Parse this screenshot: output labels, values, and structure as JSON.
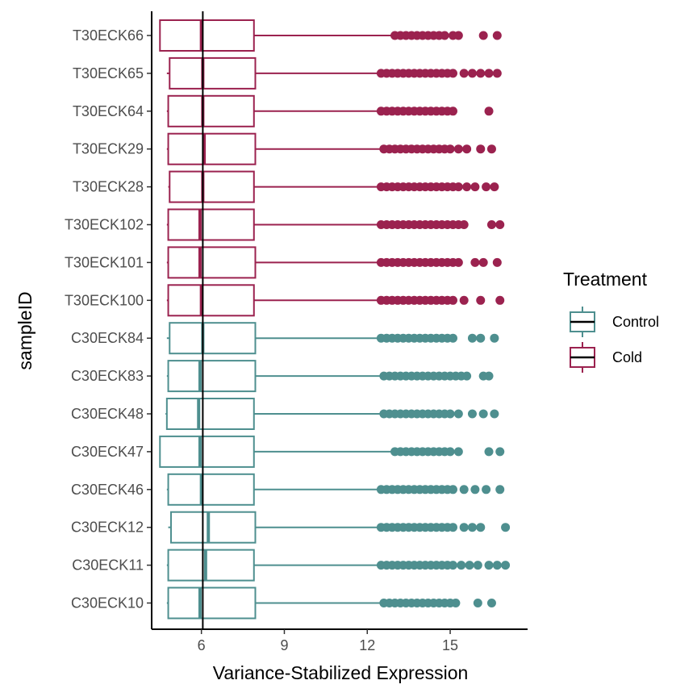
{
  "chart_data": {
    "type": "boxplot",
    "orientation": "horizontal",
    "title": "",
    "xlabel": "Variance-Stabilized Expression",
    "ylabel": "sampleID",
    "xlim": [
      4.2,
      17.8
    ],
    "xticks": [
      6,
      9,
      12,
      15
    ],
    "xtick_labels": [
      "6",
      "9",
      "12",
      "15"
    ],
    "grid": false,
    "reference_line": {
      "x": 6.05,
      "color": "#000000"
    },
    "legend": {
      "title": "Treatment",
      "placement": "right",
      "items": [
        {
          "label": "Control",
          "color": "#4e8f8f"
        },
        {
          "label": "Cold",
          "color": "#9b224f"
        }
      ]
    },
    "categories": [
      "T30ECK66",
      "T30ECK65",
      "T30ECK64",
      "T30ECK29",
      "T30ECK28",
      "T30ECK102",
      "T30ECK101",
      "T30ECK100",
      "C30ECK84",
      "C30ECK83",
      "C30ECK48",
      "C30ECK47",
      "C30ECK46",
      "C30ECK12",
      "C30ECK11",
      "C30ECK10"
    ],
    "boxes": [
      {
        "sample": "T30ECK66",
        "treatment": "Cold",
        "whisker_low": 4.5,
        "q1": 4.5,
        "median": 6.0,
        "q3": 7.9,
        "whisker_high": 13.0,
        "outliers": [
          13.0,
          13.2,
          13.4,
          13.6,
          13.8,
          14.0,
          14.2,
          14.4,
          14.6,
          14.8,
          15.1,
          15.3,
          16.2,
          16.7
        ]
      },
      {
        "sample": "T30ECK65",
        "treatment": "Cold",
        "whisker_low": 4.75,
        "q1": 4.85,
        "median": 6.05,
        "q3": 7.95,
        "whisker_high": 12.5,
        "outliers": [
          12.5,
          12.7,
          12.9,
          13.1,
          13.3,
          13.5,
          13.7,
          13.9,
          14.1,
          14.3,
          14.5,
          14.7,
          14.9,
          15.1,
          15.5,
          15.8,
          16.1,
          16.4,
          16.7
        ]
      },
      {
        "sample": "T30ECK64",
        "treatment": "Cold",
        "whisker_low": 4.75,
        "q1": 4.8,
        "median": 6.05,
        "q3": 7.9,
        "whisker_high": 12.5,
        "outliers": [
          12.5,
          12.7,
          12.9,
          13.1,
          13.3,
          13.5,
          13.7,
          13.9,
          14.1,
          14.3,
          14.5,
          14.7,
          14.9,
          15.1,
          16.4
        ]
      },
      {
        "sample": "T30ECK29",
        "treatment": "Cold",
        "whisker_low": 4.75,
        "q1": 4.8,
        "median": 6.1,
        "q3": 7.95,
        "whisker_high": 12.6,
        "outliers": [
          12.6,
          12.8,
          13.0,
          13.2,
          13.4,
          13.6,
          13.8,
          14.0,
          14.2,
          14.4,
          14.6,
          14.8,
          15.0,
          15.3,
          15.6,
          16.1,
          16.5
        ]
      },
      {
        "sample": "T30ECK28",
        "treatment": "Cold",
        "whisker_low": 4.8,
        "q1": 4.85,
        "median": 6.05,
        "q3": 7.9,
        "whisker_high": 12.5,
        "outliers": [
          12.5,
          12.7,
          12.9,
          13.1,
          13.3,
          13.5,
          13.7,
          13.9,
          14.1,
          14.3,
          14.5,
          14.7,
          14.9,
          15.1,
          15.3,
          15.6,
          15.9,
          16.3,
          16.6
        ]
      },
      {
        "sample": "T30ECK102",
        "treatment": "Cold",
        "whisker_low": 4.75,
        "q1": 4.8,
        "median": 5.95,
        "q3": 7.9,
        "whisker_high": 12.5,
        "outliers": [
          12.5,
          12.7,
          12.9,
          13.1,
          13.3,
          13.5,
          13.7,
          13.9,
          14.1,
          14.3,
          14.5,
          14.7,
          14.9,
          15.1,
          15.3,
          15.5,
          16.5,
          16.8
        ]
      },
      {
        "sample": "T30ECK101",
        "treatment": "Cold",
        "whisker_low": 4.75,
        "q1": 4.8,
        "median": 5.95,
        "q3": 7.95,
        "whisker_high": 12.5,
        "outliers": [
          12.5,
          12.7,
          12.9,
          13.1,
          13.3,
          13.5,
          13.7,
          13.9,
          14.1,
          14.3,
          14.5,
          14.7,
          14.9,
          15.1,
          15.3,
          15.9,
          16.2,
          16.7
        ]
      },
      {
        "sample": "T30ECK100",
        "treatment": "Cold",
        "whisker_low": 4.75,
        "q1": 4.8,
        "median": 6.0,
        "q3": 7.9,
        "whisker_high": 12.5,
        "outliers": [
          12.5,
          12.7,
          12.9,
          13.1,
          13.3,
          13.5,
          13.7,
          13.9,
          14.1,
          14.3,
          14.5,
          14.7,
          14.9,
          15.1,
          15.5,
          16.1,
          16.8
        ]
      },
      {
        "sample": "C30ECK84",
        "treatment": "Control",
        "whisker_low": 4.75,
        "q1": 4.85,
        "median": 6.05,
        "q3": 7.95,
        "whisker_high": 12.5,
        "outliers": [
          12.5,
          12.7,
          12.9,
          13.1,
          13.3,
          13.5,
          13.7,
          13.9,
          14.1,
          14.3,
          14.5,
          14.7,
          14.9,
          15.1,
          15.8,
          16.1,
          16.6
        ]
      },
      {
        "sample": "C30ECK83",
        "treatment": "Control",
        "whisker_low": 4.75,
        "q1": 4.8,
        "median": 5.95,
        "q3": 7.95,
        "whisker_high": 12.6,
        "outliers": [
          12.6,
          12.8,
          13.0,
          13.2,
          13.4,
          13.6,
          13.8,
          14.0,
          14.2,
          14.4,
          14.6,
          14.8,
          15.0,
          15.2,
          15.4,
          15.6,
          16.2,
          16.4
        ]
      },
      {
        "sample": "C30ECK48",
        "treatment": "Control",
        "whisker_low": 4.7,
        "q1": 4.75,
        "median": 5.9,
        "q3": 7.9,
        "whisker_high": 12.6,
        "outliers": [
          12.6,
          12.8,
          13.0,
          13.2,
          13.4,
          13.6,
          13.8,
          14.0,
          14.2,
          14.4,
          14.6,
          14.8,
          15.0,
          15.3,
          15.8,
          16.2,
          16.6
        ]
      },
      {
        "sample": "C30ECK47",
        "treatment": "Control",
        "whisker_low": 4.5,
        "q1": 4.5,
        "median": 5.95,
        "q3": 7.9,
        "whisker_high": 13.0,
        "outliers": [
          13.0,
          13.2,
          13.4,
          13.6,
          13.8,
          14.0,
          14.2,
          14.4,
          14.6,
          14.8,
          15.0,
          15.3,
          16.4,
          16.8
        ]
      },
      {
        "sample": "C30ECK46",
        "treatment": "Control",
        "whisker_low": 4.75,
        "q1": 4.8,
        "median": 6.0,
        "q3": 7.9,
        "whisker_high": 12.5,
        "outliers": [
          12.5,
          12.7,
          12.9,
          13.1,
          13.3,
          13.5,
          13.7,
          13.9,
          14.1,
          14.3,
          14.5,
          14.7,
          14.9,
          15.1,
          15.5,
          15.9,
          16.3,
          16.8
        ]
      },
      {
        "sample": "C30ECK12",
        "treatment": "Control",
        "whisker_low": 4.8,
        "q1": 4.9,
        "median": 6.25,
        "q3": 7.95,
        "whisker_high": 12.5,
        "outliers": [
          12.5,
          12.7,
          12.9,
          13.1,
          13.3,
          13.5,
          13.7,
          13.9,
          14.1,
          14.3,
          14.5,
          14.7,
          14.9,
          15.1,
          15.5,
          15.8,
          16.1,
          17.0
        ]
      },
      {
        "sample": "C30ECK11",
        "treatment": "Control",
        "whisker_low": 4.75,
        "q1": 4.8,
        "median": 6.15,
        "q3": 7.9,
        "whisker_high": 12.5,
        "outliers": [
          12.5,
          12.7,
          12.9,
          13.1,
          13.3,
          13.5,
          13.7,
          13.9,
          14.1,
          14.3,
          14.5,
          14.7,
          14.9,
          15.1,
          15.4,
          15.7,
          16.0,
          16.4,
          16.7,
          17.0
        ]
      },
      {
        "sample": "C30ECK10",
        "treatment": "Control",
        "whisker_low": 4.75,
        "q1": 4.8,
        "median": 5.95,
        "q3": 7.95,
        "whisker_high": 12.6,
        "outliers": [
          12.6,
          12.8,
          13.0,
          13.2,
          13.4,
          13.6,
          13.8,
          14.0,
          14.2,
          14.4,
          14.6,
          14.8,
          15.0,
          15.2,
          16.0,
          16.5
        ]
      }
    ]
  }
}
